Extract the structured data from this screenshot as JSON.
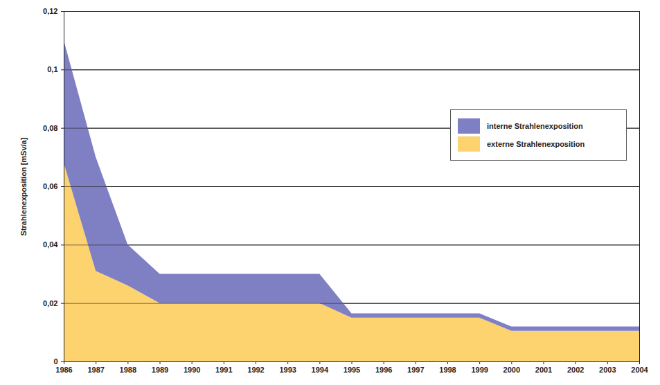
{
  "chart_data": {
    "type": "area",
    "stacked": true,
    "ylabel": "Strahlenexposition [mSv/a]",
    "x": [
      1986,
      1987,
      1988,
      1989,
      1990,
      1991,
      1992,
      1993,
      1994,
      1995,
      1996,
      1997,
      1998,
      1999,
      2000,
      2001,
      2002,
      2003,
      2004
    ],
    "series": [
      {
        "name": "externe Strahlenexposition",
        "color": "#fcd36f",
        "values": [
          0.068,
          0.031,
          0.026,
          0.02,
          0.02,
          0.02,
          0.02,
          0.02,
          0.02,
          0.015,
          0.015,
          0.015,
          0.015,
          0.015,
          0.0105,
          0.0105,
          0.0105,
          0.0105,
          0.0105
        ]
      },
      {
        "name": "interne Strahlenexposition",
        "color": "#7f7fc4",
        "values": [
          0.042,
          0.039,
          0.014,
          0.01,
          0.01,
          0.01,
          0.01,
          0.01,
          0.01,
          0.0015,
          0.0015,
          0.0015,
          0.0015,
          0.0015,
          0.0015,
          0.0015,
          0.0015,
          0.0015,
          0.0015
        ]
      }
    ],
    "xlim": [
      1986,
      2004
    ],
    "xticks": [
      1986,
      1987,
      1988,
      1989,
      1990,
      1991,
      1992,
      1993,
      1994,
      1995,
      1996,
      1997,
      1998,
      1999,
      2000,
      2001,
      2002,
      2003,
      2004
    ],
    "ylim": [
      0,
      0.12
    ],
    "yticks": [
      0,
      {
        "value": 0.02,
        "label": "0,02"
      },
      {
        "value": 0.04,
        "label": "0,04"
      },
      {
        "value": 0.06,
        "label": "0,06"
      },
      {
        "value": 0.08,
        "label": "0,08"
      },
      {
        "value": 0.1,
        "label": "0,1"
      },
      {
        "value": 0.12,
        "label": "0,12"
      }
    ],
    "grid": true,
    "legend": "right"
  }
}
